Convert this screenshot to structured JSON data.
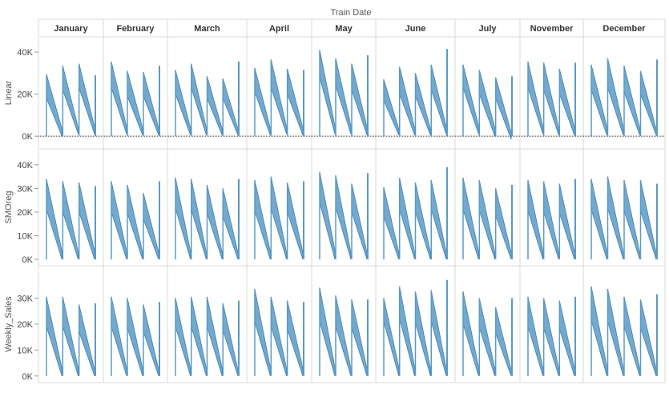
{
  "chart_data": {
    "type": "area",
    "column_header": "Train Date",
    "months": [
      "January",
      "February",
      "March",
      "April",
      "May",
      "June",
      "July",
      "November",
      "December"
    ],
    "rows": [
      {
        "label": "Linear",
        "ylim": [
          -3000,
          45000
        ],
        "ticks": [
          0,
          20000,
          40000
        ],
        "tick_labels": [
          "0K",
          "20K",
          "40K"
        ],
        "zero_line": true
      },
      {
        "label": "SMOreg",
        "ylim": [
          -1000,
          44000
        ],
        "ticks": [
          0,
          10000,
          20000,
          30000,
          40000
        ],
        "tick_labels": [
          "0K",
          "10K",
          "20K",
          "30K",
          "40K"
        ]
      },
      {
        "label": "Weekly_Sales",
        "ylim": [
          -1000,
          40000
        ],
        "ticks": [
          0,
          10000,
          20000,
          30000
        ],
        "tick_labels": [
          "0K",
          "10K",
          "20K",
          "30K"
        ]
      }
    ],
    "series_color": "#5b9ac5",
    "panels": [
      [
        [
          [
            29500,
            18000,
            3500,
            0
          ],
          [
            33500,
            22000,
            4000,
            1000
          ],
          [
            34500,
            23000,
            4500,
            1000
          ],
          [
            29000,
            29000,
            0,
            0
          ]
        ],
        [
          [
            35500,
            23000,
            4500,
            1000
          ],
          [
            31000,
            19000,
            4000,
            500
          ],
          [
            30500,
            19000,
            4000,
            500
          ],
          [
            33500,
            33500,
            0,
            0
          ]
        ],
        [
          [
            31500,
            20000,
            4000,
            500
          ],
          [
            34500,
            23000,
            4000,
            500
          ],
          [
            28500,
            18000,
            3500,
            500
          ],
          [
            27500,
            18000,
            3500,
            500
          ],
          [
            35500,
            35500,
            0,
            0
          ]
        ],
        [
          [
            32500,
            21000,
            4000,
            500
          ],
          [
            36500,
            23000,
            4500,
            1000
          ],
          [
            32000,
            20000,
            4000,
            500
          ],
          [
            31500,
            31500,
            0,
            0
          ]
        ],
        [
          [
            41000,
            28000,
            5000,
            1000
          ],
          [
            37000,
            24000,
            5000,
            1000
          ],
          [
            34500,
            22000,
            4500,
            500
          ],
          [
            38500,
            38500,
            0,
            0
          ]
        ],
        [
          [
            27000,
            17000,
            3500,
            500
          ],
          [
            33000,
            20000,
            4000,
            500
          ],
          [
            30000,
            19000,
            3500,
            500
          ],
          [
            34000,
            22000,
            4500,
            1000
          ],
          [
            41500,
            41500,
            0,
            0
          ]
        ],
        [
          [
            34000,
            23000,
            5000,
            1000
          ],
          [
            31500,
            20000,
            4000,
            0
          ],
          [
            28000,
            18000,
            2000,
            -1500
          ],
          [
            28500,
            28500,
            0,
            0
          ]
        ],
        [
          [
            35500,
            23000,
            4500,
            1000
          ],
          [
            35000,
            22000,
            4000,
            500
          ],
          [
            32000,
            20000,
            4000,
            500
          ],
          [
            35000,
            35000,
            0,
            0
          ]
        ],
        [
          [
            34000,
            22000,
            4500,
            500
          ],
          [
            37000,
            23000,
            4500,
            500
          ],
          [
            33500,
            21000,
            4000,
            500
          ],
          [
            31000,
            20000,
            3500,
            500
          ],
          [
            36500,
            36500,
            0,
            0
          ]
        ]
      ],
      [
        [
          [
            34000,
            21000,
            3500,
            0
          ],
          [
            33000,
            20000,
            3000,
            0
          ],
          [
            32500,
            20000,
            3500,
            0
          ],
          [
            31000,
            31000,
            0,
            0
          ]
        ],
        [
          [
            33000,
            20000,
            3500,
            0
          ],
          [
            31500,
            19500,
            3000,
            0
          ],
          [
            28000,
            17000,
            3000,
            0
          ],
          [
            33000,
            33000,
            0,
            0
          ]
        ],
        [
          [
            34500,
            21500,
            3500,
            0
          ],
          [
            34000,
            21000,
            3000,
            0
          ],
          [
            31500,
            19500,
            3000,
            0
          ],
          [
            30000,
            18000,
            3000,
            0
          ],
          [
            34000,
            34000,
            0,
            0
          ]
        ],
        [
          [
            33500,
            20500,
            3500,
            0
          ],
          [
            35000,
            21500,
            3000,
            0
          ],
          [
            32500,
            20000,
            3000,
            0
          ],
          [
            33000,
            33000,
            0,
            0
          ]
        ],
        [
          [
            37000,
            24000,
            4000,
            0
          ],
          [
            35500,
            22000,
            3000,
            0
          ],
          [
            32000,
            20000,
            3000,
            0
          ],
          [
            36500,
            36500,
            0,
            0
          ]
        ],
        [
          [
            30500,
            18000,
            3000,
            0
          ],
          [
            34500,
            21000,
            3000,
            0
          ],
          [
            32500,
            20000,
            3000,
            0
          ],
          [
            33500,
            21000,
            3000,
            0
          ],
          [
            39000,
            39000,
            0,
            0
          ]
        ],
        [
          [
            34500,
            21000,
            3500,
            0
          ],
          [
            33500,
            20500,
            3000,
            0
          ],
          [
            30000,
            18500,
            3000,
            0
          ],
          [
            31500,
            31500,
            0,
            0
          ]
        ],
        [
          [
            33500,
            20500,
            3500,
            0
          ],
          [
            33000,
            20000,
            3000,
            0
          ],
          [
            32000,
            19500,
            3000,
            0
          ],
          [
            34000,
            34000,
            0,
            0
          ]
        ],
        [
          [
            34000,
            21000,
            3500,
            0
          ],
          [
            35000,
            21500,
            3000,
            0
          ],
          [
            33500,
            20500,
            3000,
            0
          ],
          [
            33500,
            20500,
            3000,
            0
          ],
          [
            32000,
            32000,
            0,
            0
          ]
        ]
      ],
      [
        [
          [
            30500,
            19000,
            3000,
            0
          ],
          [
            30500,
            19000,
            3000,
            0
          ],
          [
            27500,
            17000,
            2500,
            0
          ],
          [
            28000,
            28000,
            0,
            0
          ]
        ],
        [
          [
            30500,
            19000,
            3000,
            0
          ],
          [
            30000,
            18500,
            3000,
            0
          ],
          [
            27500,
            17000,
            2500,
            0
          ],
          [
            28500,
            28500,
            0,
            0
          ]
        ],
        [
          [
            30000,
            19000,
            3000,
            0
          ],
          [
            30500,
            19000,
            3000,
            0
          ],
          [
            30500,
            19000,
            3000,
            0
          ],
          [
            28000,
            17500,
            2500,
            0
          ],
          [
            29000,
            29000,
            0,
            0
          ]
        ],
        [
          [
            33500,
            21000,
            3500,
            0
          ],
          [
            30500,
            19000,
            3000,
            0
          ],
          [
            29000,
            18000,
            3000,
            0
          ],
          [
            28500,
            28500,
            0,
            0
          ]
        ],
        [
          [
            34000,
            21000,
            3500,
            0
          ],
          [
            31000,
            19000,
            3000,
            0
          ],
          [
            29500,
            18500,
            3000,
            0
          ],
          [
            29500,
            29500,
            0,
            0
          ]
        ],
        [
          [
            30000,
            21000,
            3500,
            0
          ],
          [
            34500,
            22000,
            3500,
            0
          ],
          [
            32500,
            20500,
            3000,
            0
          ],
          [
            33000,
            21000,
            3000,
            0
          ],
          [
            37000,
            37000,
            0,
            0
          ]
        ],
        [
          [
            32500,
            20000,
            3500,
            0
          ],
          [
            30000,
            18500,
            3000,
            0
          ],
          [
            26500,
            16500,
            2500,
            0
          ],
          [
            30000,
            30000,
            0,
            0
          ]
        ],
        [
          [
            30500,
            19000,
            3000,
            0
          ],
          [
            30000,
            18500,
            3000,
            0
          ],
          [
            29000,
            18000,
            3000,
            0
          ],
          [
            30500,
            30500,
            0,
            0
          ]
        ],
        [
          [
            34500,
            21500,
            3500,
            0
          ],
          [
            33500,
            21000,
            3000,
            0
          ],
          [
            30500,
            19000,
            3000,
            0
          ],
          [
            29500,
            18500,
            3000,
            0
          ],
          [
            31500,
            31500,
            0,
            0
          ]
        ]
      ]
    ]
  }
}
